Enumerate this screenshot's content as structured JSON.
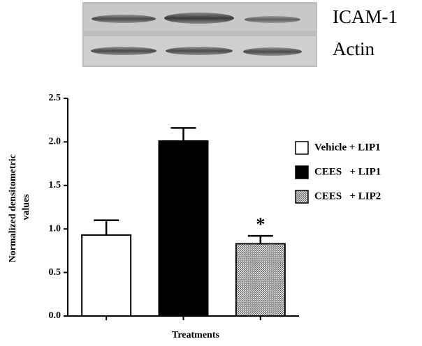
{
  "chart_data": {
    "type": "bar",
    "blot_labels": [
      "ICAM-1",
      "Actin"
    ],
    "categories": [
      "Vehicle + LIP1",
      "CEES   + LIP1",
      "CEES   + LIP2"
    ],
    "values": [
      0.93,
      2.01,
      0.83
    ],
    "errors": [
      0.17,
      0.15,
      0.09
    ],
    "colors": [
      "#ffffff",
      "#000000",
      "#9a9a9a"
    ],
    "hatched": [
      false,
      false,
      true
    ],
    "xlabel": "Treatments",
    "ylabel": "Normalized densitometric values",
    "ylim": [
      0,
      2.5
    ],
    "yticks": [
      {
        "value": 0,
        "label": "0.0"
      },
      0.5,
      {
        "value": 1,
        "label": "1.0"
      },
      1.5,
      {
        "value": 2,
        "label": "2.0"
      },
      2.5
    ],
    "annotation": "*",
    "legend": "right"
  }
}
